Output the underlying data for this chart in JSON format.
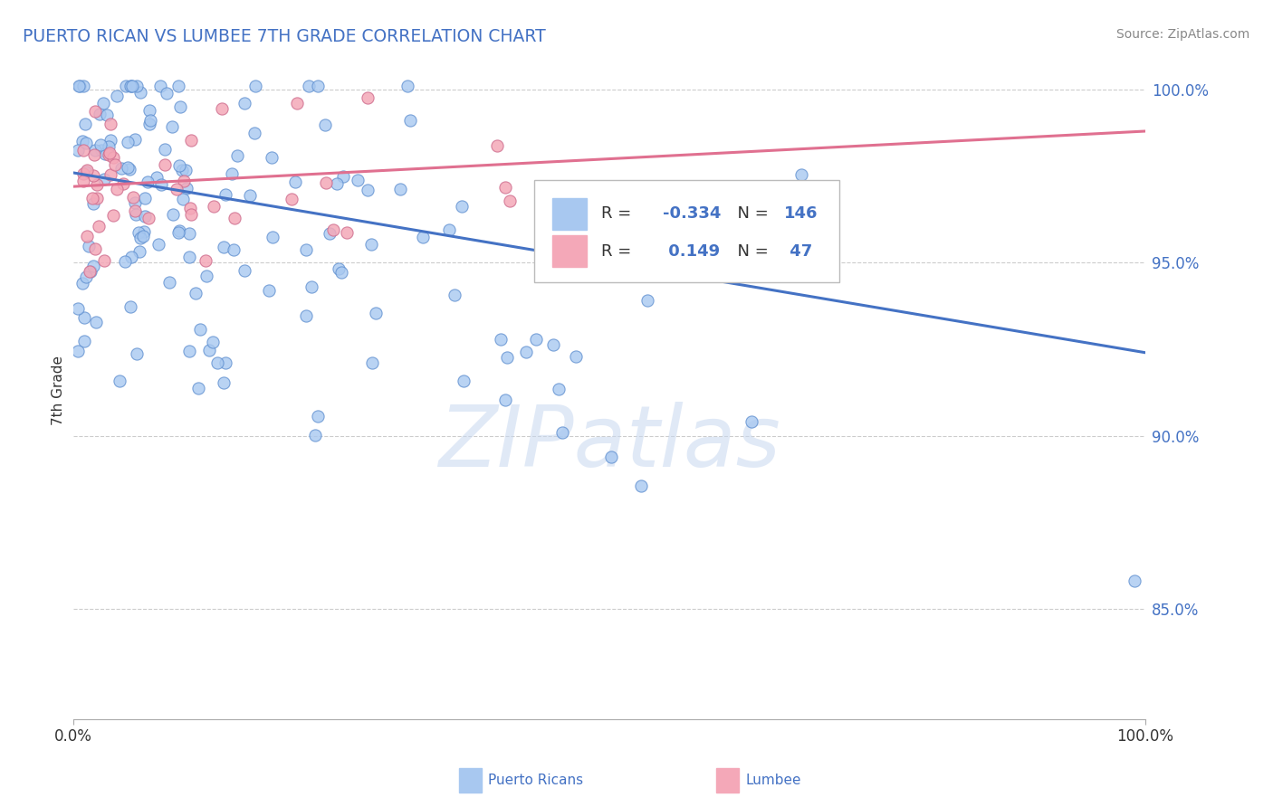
{
  "title": "PUERTO RICAN VS LUMBEE 7TH GRADE CORRELATION CHART",
  "source_text": "Source: ZipAtlas.com",
  "ylabel": "7th Grade",
  "xlim": [
    0.0,
    1.0
  ],
  "ylim": [
    0.818,
    1.008
  ],
  "legend_r_blue": "-0.334",
  "legend_n_blue": "146",
  "legend_r_pink": " 0.149",
  "legend_n_pink": " 47",
  "blue_color": "#a8c8f0",
  "pink_color": "#f4a8b8",
  "blue_edge_color": "#6090d0",
  "pink_edge_color": "#d07090",
  "blue_line_color": "#4472c4",
  "pink_line_color": "#e07090",
  "watermark": "ZIPatlas",
  "title_color": "#4472c4",
  "axis_color": "#4472c4",
  "grid_color": "#cccccc",
  "blue_line_start_y": 0.976,
  "blue_line_end_y": 0.924,
  "pink_line_start_y": 0.972,
  "pink_line_end_y": 0.988
}
